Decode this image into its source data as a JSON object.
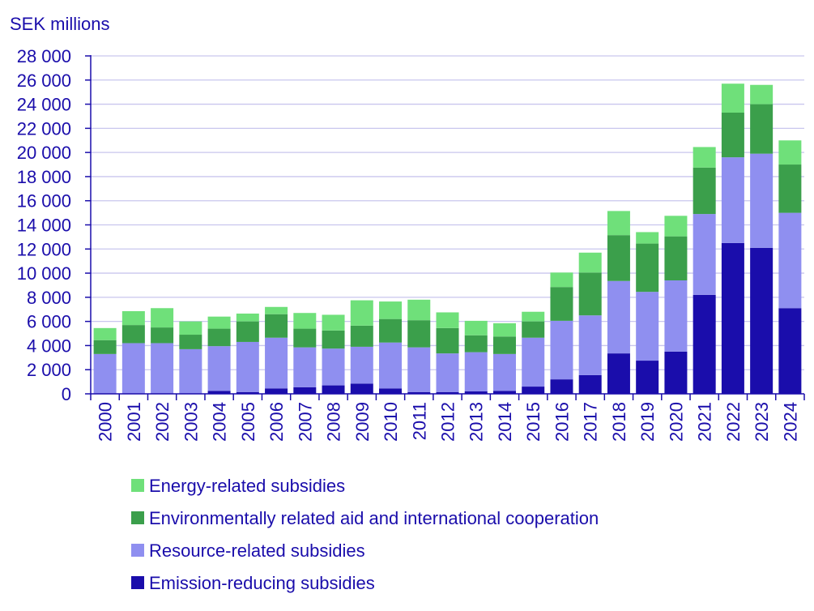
{
  "chart_data": {
    "type": "bar",
    "stacked": true,
    "title": "",
    "ylabel": "SEK millions",
    "xlabel": "",
    "ylim": [
      0,
      28000
    ],
    "yticks": [
      0,
      2000,
      4000,
      6000,
      8000,
      10000,
      12000,
      14000,
      16000,
      18000,
      20000,
      22000,
      24000,
      26000,
      28000
    ],
    "ytick_labels": [
      "0",
      "2 000",
      "4 000",
      "6 000",
      "8 000",
      "10 000",
      "12 000",
      "14 000",
      "16 000",
      "18 000",
      "20 000",
      "22 000",
      "24 000",
      "26 000",
      "28 000"
    ],
    "grid": true,
    "legend_position": "bottom",
    "categories": [
      "2000",
      "2001",
      "2002",
      "2003",
      "2004",
      "2005",
      "2006",
      "2007",
      "2008",
      "2009",
      "2010",
      "2011",
      "2012",
      "2013",
      "2014",
      "2015",
      "2016",
      "2017",
      "2018",
      "2019",
      "2020",
      "2021",
      "2022",
      "2023",
      "2024"
    ],
    "series": [
      {
        "name": "Emission-reducing subsidies",
        "color": "#1a0dab",
        "values": [
          50,
          50,
          50,
          50,
          250,
          150,
          450,
          550,
          700,
          850,
          450,
          150,
          150,
          200,
          250,
          600,
          1200,
          1550,
          3350,
          2750,
          3500,
          8200,
          12500,
          12100,
          7100
        ]
      },
      {
        "name": "Resource-related subsidies",
        "color": "#8f8ff0",
        "values": [
          3250,
          4150,
          4150,
          3650,
          3700,
          4150,
          4200,
          3300,
          3050,
          3050,
          3800,
          3700,
          3200,
          3250,
          3050,
          4050,
          4850,
          4950,
          6000,
          5700,
          5900,
          6700,
          7100,
          7800,
          7900
        ]
      },
      {
        "name": "Environmentally related aid and international cooperation",
        "color": "#3b9f4b",
        "values": [
          1150,
          1500,
          1300,
          1200,
          1450,
          1700,
          1950,
          1550,
          1500,
          1750,
          1950,
          2250,
          2100,
          1400,
          1450,
          1350,
          2800,
          3550,
          3800,
          4000,
          3650,
          3850,
          3700,
          4100,
          4000
        ]
      },
      {
        "name": "Energy-related subsidies",
        "color": "#6fe07a",
        "values": [
          1000,
          1150,
          1600,
          1100,
          1000,
          650,
          600,
          1300,
          1300,
          2100,
          1450,
          1700,
          1300,
          1200,
          1100,
          800,
          1200,
          1650,
          2000,
          950,
          1700,
          1700,
          2400,
          1600,
          2000
        ]
      }
    ],
    "legend_order": [
      3,
      2,
      1,
      0
    ]
  }
}
